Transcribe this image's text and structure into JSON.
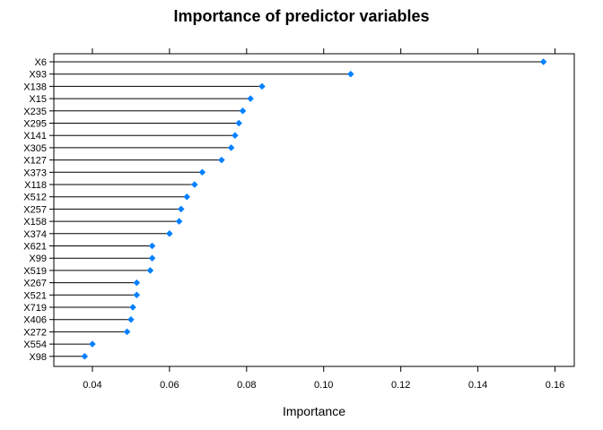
{
  "chart_data": {
    "type": "dotplot",
    "title": "Importance of predictor variables",
    "xlabel": "Importance",
    "ylabel": "",
    "xlim": [
      0.03,
      0.165
    ],
    "x_ticks": [
      0.04,
      0.06,
      0.08,
      0.1,
      0.12,
      0.14,
      0.16
    ],
    "x_tick_labels": [
      "0.04",
      "0.06",
      "0.08",
      "0.10",
      "0.12",
      "0.14",
      "0.16"
    ],
    "categories": [
      "X6",
      "X93",
      "X138",
      "X15",
      "X235",
      "X295",
      "X141",
      "X305",
      "X127",
      "X373",
      "X118",
      "X512",
      "X257",
      "X158",
      "X374",
      "X621",
      "X99",
      "X519",
      "X267",
      "X521",
      "X719",
      "X406",
      "X272",
      "X554",
      "X98"
    ],
    "values": [
      0.157,
      0.107,
      0.084,
      0.081,
      0.079,
      0.078,
      0.077,
      0.076,
      0.0735,
      0.0685,
      0.0665,
      0.0645,
      0.063,
      0.0625,
      0.06,
      0.0555,
      0.0555,
      0.055,
      0.0515,
      0.0515,
      0.0505,
      0.05,
      0.049,
      0.04,
      0.038
    ],
    "marker_color": "#0080FF",
    "grid": false
  }
}
